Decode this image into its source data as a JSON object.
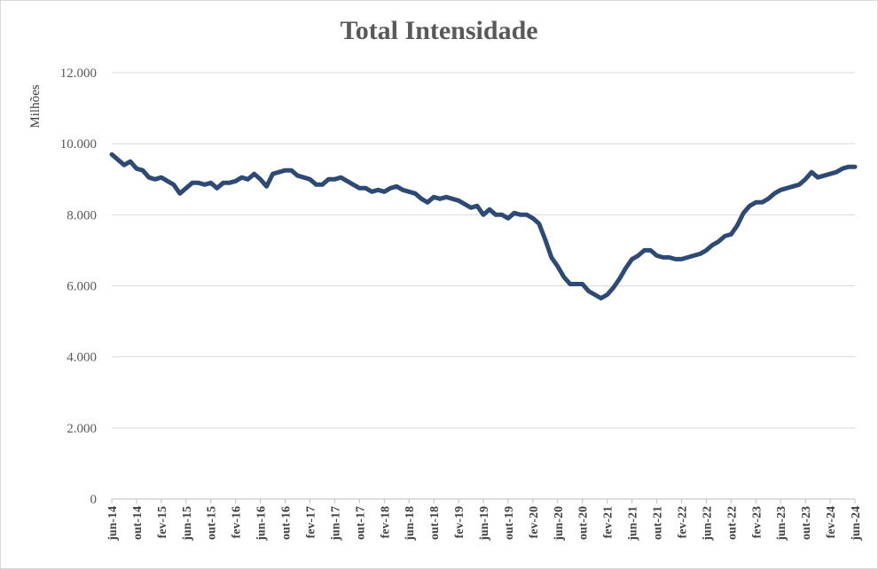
{
  "chart_data": {
    "type": "line",
    "title": "Total Intensidade",
    "ylabel": "Milhões",
    "xlabel": "",
    "ylim": [
      0,
      12000
    ],
    "yticks": [
      0,
      2000,
      4000,
      6000,
      8000,
      10000,
      12000
    ],
    "ytick_labels": [
      "0",
      "2.000",
      "4.000",
      "6.000",
      "8.000",
      "10.000",
      "12.000"
    ],
    "grid": true,
    "legend": "none",
    "line_color": "#2c4a73",
    "x_tick_labels": [
      "jun-14",
      "out-14",
      "fev-15",
      "jun-15",
      "out-15",
      "fev-16",
      "jun-16",
      "out-16",
      "fev-17",
      "jun-17",
      "out-17",
      "fev-18",
      "jun-18",
      "out-18",
      "fev-19",
      "jun-19",
      "out-19",
      "fev-20",
      "jun-20",
      "out-20",
      "fev-21",
      "jun-21",
      "out-21",
      "fev-22",
      "jun-22",
      "out-22",
      "fev-23",
      "jun-23",
      "out-23",
      "fev-24",
      "jun-24"
    ],
    "x_start": "jun-14",
    "x_end": "jun-24",
    "series": [
      {
        "values": [
          9700,
          9550,
          9400,
          9500,
          9300,
          9250,
          9050,
          9000,
          9050,
          8950,
          8850,
          8600,
          8750,
          8900,
          8900,
          8850,
          8900,
          8750,
          8900,
          8900,
          8950,
          9050,
          9000,
          9150,
          9000,
          8800,
          9150,
          9200,
          9250,
          9250,
          9100,
          9050,
          9000,
          8850,
          8850,
          9000,
          9000,
          9050,
          8950,
          8850,
          8750,
          8750,
          8650,
          8700,
          8650,
          8750,
          8800,
          8700,
          8650,
          8600,
          8450,
          8350,
          8500,
          8450,
          8500,
          8450,
          8400,
          8300,
          8200,
          8250,
          8000,
          8150,
          8000,
          8000,
          7900,
          8050,
          8000,
          8000,
          7900,
          7750,
          7300,
          6800,
          6550,
          6250,
          6050,
          6050,
          6050,
          5850,
          5750,
          5650,
          5750,
          5950,
          6200,
          6500,
          6750,
          6850,
          7000,
          7000,
          6850,
          6800,
          6800,
          6750,
          6750,
          6800,
          6850,
          6900,
          7000,
          7150,
          7250,
          7400,
          7450,
          7700,
          8050,
          8250,
          8350,
          8350,
          8450,
          8600,
          8700,
          8750,
          8800,
          8850,
          9000,
          9200,
          9050,
          9100,
          9150,
          9200,
          9300,
          9350,
          9350
        ]
      }
    ]
  }
}
